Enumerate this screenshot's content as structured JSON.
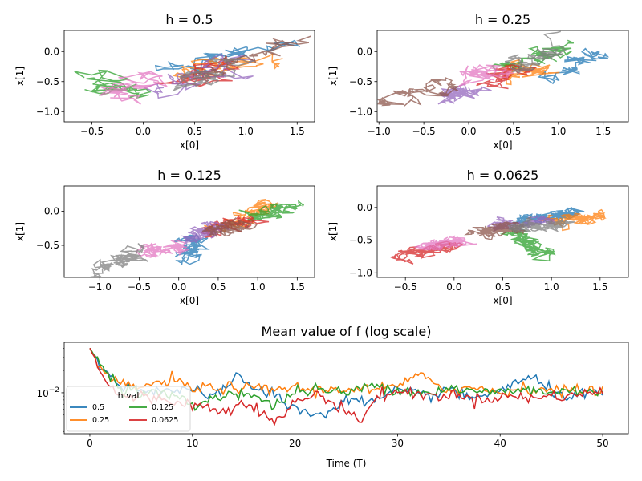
{
  "colors": {
    "tab10": [
      "#1f77b4",
      "#ff7f0e",
      "#2ca02c",
      "#d62728",
      "#9467bd",
      "#8c564b",
      "#e377c2",
      "#7f7f7f"
    ],
    "line_series": [
      "#1f77b4",
      "#ff7f0e",
      "#2ca02c",
      "#d62728"
    ]
  },
  "chart_data": [
    {
      "type": "line",
      "title": "h = 0.5",
      "xlabel": "x[0]",
      "ylabel": "x[1]",
      "xlim": [
        -0.77,
        1.67
      ],
      "ylim": [
        -1.17,
        0.35
      ],
      "xticks": [
        -0.5,
        0.0,
        0.5,
        1.0,
        1.5
      ],
      "xtick_labels": [
        "−0.5",
        "0.0",
        "0.5",
        "1.0",
        "1.5"
      ],
      "yticks": [
        -1.0,
        -0.5,
        0.0
      ],
      "ytick_labels": [
        "−1.0",
        "−0.5",
        "0.0"
      ],
      "trajectories": [
        {
          "start": [
            0.3,
            -0.3
          ],
          "end": [
            1.4,
            0.1
          ]
        },
        {
          "start": [
            0.4,
            -0.4
          ],
          "end": [
            1.2,
            -0.1
          ]
        },
        {
          "start": [
            0.0,
            -0.7
          ],
          "end": [
            -0.55,
            -0.4
          ]
        },
        {
          "start": [
            0.3,
            -0.5
          ],
          "end": [
            0.9,
            -0.2
          ]
        },
        {
          "start": [
            0.2,
            -0.6
          ],
          "end": [
            1.0,
            -0.1
          ]
        },
        {
          "start": [
            0.6,
            -0.4
          ],
          "end": [
            1.5,
            0.15
          ]
        },
        {
          "start": [
            0.1,
            -0.5
          ],
          "end": [
            -0.2,
            -0.7
          ]
        },
        {
          "start": [
            0.5,
            -0.5
          ],
          "end": [
            0.8,
            -0.2
          ]
        }
      ]
    },
    {
      "type": "line",
      "title": "h = 0.25",
      "xlabel": "x[0]",
      "ylabel": "x[1]",
      "xlim": [
        -1.02,
        1.78
      ],
      "ylim": [
        -1.17,
        0.35
      ],
      "xticks": [
        -1.0,
        -0.5,
        0.0,
        0.5,
        1.0,
        1.5
      ],
      "xtick_labels": [
        "−1.0",
        "−0.5",
        "0.0",
        "0.5",
        "1.0",
        "1.5"
      ],
      "yticks": [
        -1.0,
        -0.5,
        0.0
      ],
      "ytick_labels": [
        "−1.0",
        "−0.5",
        "0.0"
      ],
      "trajectories": [
        {
          "start": [
            0.9,
            -0.4
          ],
          "end": [
            1.55,
            0.0
          ]
        },
        {
          "start": [
            0.4,
            -0.4
          ],
          "end": [
            0.9,
            -0.2
          ]
        },
        {
          "start": [
            0.3,
            -0.3
          ],
          "end": [
            1.1,
            0.1
          ]
        },
        {
          "start": [
            0.2,
            -0.5
          ],
          "end": [
            0.7,
            -0.3
          ]
        },
        {
          "start": [
            0.0,
            -0.6
          ],
          "end": [
            -0.3,
            -0.8
          ]
        },
        {
          "start": [
            -0.2,
            -0.5
          ],
          "end": [
            -0.8,
            -0.9
          ]
        },
        {
          "start": [
            0.0,
            -0.4
          ],
          "end": [
            0.3,
            -0.3
          ]
        },
        {
          "start": [
            0.5,
            -0.3
          ],
          "end": [
            1.0,
            0.1
          ]
        }
      ]
    },
    {
      "type": "line",
      "title": "h = 0.125",
      "xlabel": "x[0]",
      "ylabel": "x[1]",
      "xlim": [
        -1.45,
        1.72
      ],
      "ylim": [
        -0.97,
        0.37
      ],
      "xticks": [
        -1.0,
        -0.5,
        0.0,
        0.5,
        1.0,
        1.5
      ],
      "xtick_labels": [
        "−1.0",
        "−0.5",
        "0.0",
        "0.5",
        "1.0",
        "1.5"
      ],
      "yticks": [
        -0.5,
        0.0
      ],
      "ytick_labels": [
        "−0.5",
        "0.0"
      ],
      "trajectories": [
        {
          "start": [
            0.2,
            -0.4
          ],
          "end": [
            0.1,
            -0.7
          ]
        },
        {
          "start": [
            0.6,
            -0.2
          ],
          "end": [
            1.1,
            0.1
          ]
        },
        {
          "start": [
            0.9,
            -0.1
          ],
          "end": [
            1.5,
            0.1
          ]
        },
        {
          "start": [
            0.3,
            -0.3
          ],
          "end": [
            1.0,
            -0.1
          ]
        },
        {
          "start": [
            0.1,
            -0.4
          ],
          "end": [
            0.5,
            -0.2
          ]
        },
        {
          "start": [
            0.4,
            -0.3
          ],
          "end": [
            0.8,
            -0.2
          ]
        },
        {
          "start": [
            0.0,
            -0.5
          ],
          "end": [
            -0.5,
            -0.6
          ]
        },
        {
          "start": [
            -0.5,
            -0.6
          ],
          "end": [
            -1.0,
            -0.85
          ]
        }
      ]
    },
    {
      "type": "line",
      "title": "h = 0.0625",
      "xlabel": "x[0]",
      "ylabel": "x[1]",
      "xlim": [
        -0.79,
        1.79
      ],
      "ylim": [
        -1.07,
        0.33
      ],
      "xticks": [
        -0.5,
        0.0,
        0.5,
        1.0,
        1.5
      ],
      "xtick_labels": [
        "−0.5",
        "0.0",
        "0.5",
        "1.0",
        "1.5"
      ],
      "yticks": [
        -1.0,
        -0.5,
        0.0
      ],
      "ytick_labels": [
        "−1.0",
        "−0.5",
        "0.0"
      ],
      "trajectories": [
        {
          "start": [
            0.7,
            -0.2
          ],
          "end": [
            1.25,
            -0.05
          ]
        },
        {
          "start": [
            1.0,
            -0.2
          ],
          "end": [
            1.6,
            -0.15
          ]
        },
        {
          "start": [
            0.6,
            -0.4
          ],
          "end": [
            0.9,
            -0.7
          ]
        },
        {
          "start": [
            0.0,
            -0.6
          ],
          "end": [
            -0.6,
            -0.75
          ]
        },
        {
          "start": [
            0.4,
            -0.3
          ],
          "end": [
            1.0,
            -0.2
          ]
        },
        {
          "start": [
            0.2,
            -0.4
          ],
          "end": [
            0.7,
            -0.3
          ]
        },
        {
          "start": [
            0.1,
            -0.5
          ],
          "end": [
            -0.3,
            -0.6
          ]
        },
        {
          "start": [
            0.6,
            -0.3
          ],
          "end": [
            1.1,
            -0.25
          ]
        }
      ]
    },
    {
      "type": "line",
      "title": "Mean value of f (log scale)",
      "xlabel": "Time (T)",
      "ylabel": "",
      "yscale": "log",
      "xlim": [
        -2.5,
        52.5
      ],
      "ylim": [
        0.0028,
        0.048
      ],
      "xticks": [
        0,
        10,
        20,
        30,
        40,
        50
      ],
      "xtick_labels": [
        "0",
        "10",
        "20",
        "30",
        "40",
        "50"
      ],
      "ytick_major_label": "10",
      "ytick_major_exponent": "−2",
      "legend": {
        "title": "h val",
        "location": "lower-left",
        "ncol": 2
      },
      "series": [
        {
          "name": "0.5",
          "x": [
            0,
            1,
            2,
            3,
            5,
            8,
            10,
            12,
            14.5,
            16,
            18,
            20,
            23,
            25,
            27,
            30,
            33,
            35,
            37,
            40,
            43,
            45,
            47,
            50
          ],
          "y": [
            0.04,
            0.022,
            0.016,
            0.013,
            0.011,
            0.011,
            0.0105,
            0.0085,
            0.018,
            0.011,
            0.0095,
            0.006,
            0.0048,
            0.009,
            0.007,
            0.0105,
            0.009,
            0.0115,
            0.008,
            0.011,
            0.016,
            0.0105,
            0.009,
            0.01
          ]
        },
        {
          "name": "0.25",
          "x": [
            0,
            1,
            2,
            3,
            5,
            7,
            8,
            10,
            12,
            15,
            18,
            20,
            22,
            25,
            28,
            30,
            32.5,
            35,
            38,
            40,
            42,
            45,
            48,
            50
          ],
          "y": [
            0.04,
            0.02,
            0.015,
            0.013,
            0.012,
            0.0135,
            0.0155,
            0.011,
            0.012,
            0.0115,
            0.011,
            0.012,
            0.0105,
            0.0115,
            0.011,
            0.0125,
            0.017,
            0.011,
            0.0115,
            0.01,
            0.0115,
            0.011,
            0.0105,
            0.011
          ]
        },
        {
          "name": "0.125",
          "x": [
            0,
            1,
            2,
            3,
            5,
            8,
            10,
            12,
            15,
            18,
            20,
            22,
            25,
            28,
            30,
            33,
            35,
            38,
            40,
            43,
            45,
            48,
            50
          ],
          "y": [
            0.04,
            0.024,
            0.017,
            0.012,
            0.01,
            0.0095,
            0.0065,
            0.0085,
            0.0105,
            0.0065,
            0.0105,
            0.011,
            0.01,
            0.013,
            0.011,
            0.01,
            0.0115,
            0.01,
            0.0105,
            0.011,
            0.01,
            0.011,
            0.0105
          ]
        },
        {
          "name": "0.0625",
          "x": [
            0,
            1,
            2,
            3,
            4,
            5,
            7,
            9,
            11,
            13,
            15,
            16,
            18,
            20,
            22,
            24,
            26.5,
            28,
            30,
            33,
            35,
            38,
            40,
            43,
            45,
            48,
            50
          ],
          "y": [
            0.04,
            0.02,
            0.012,
            0.009,
            0.0085,
            0.009,
            0.008,
            0.0075,
            0.0065,
            0.0055,
            0.008,
            0.0065,
            0.0038,
            0.0075,
            0.0095,
            0.007,
            0.0042,
            0.009,
            0.0105,
            0.009,
            0.0095,
            0.008,
            0.009,
            0.0085,
            0.009,
            0.0095,
            0.0105
          ]
        }
      ]
    }
  ]
}
